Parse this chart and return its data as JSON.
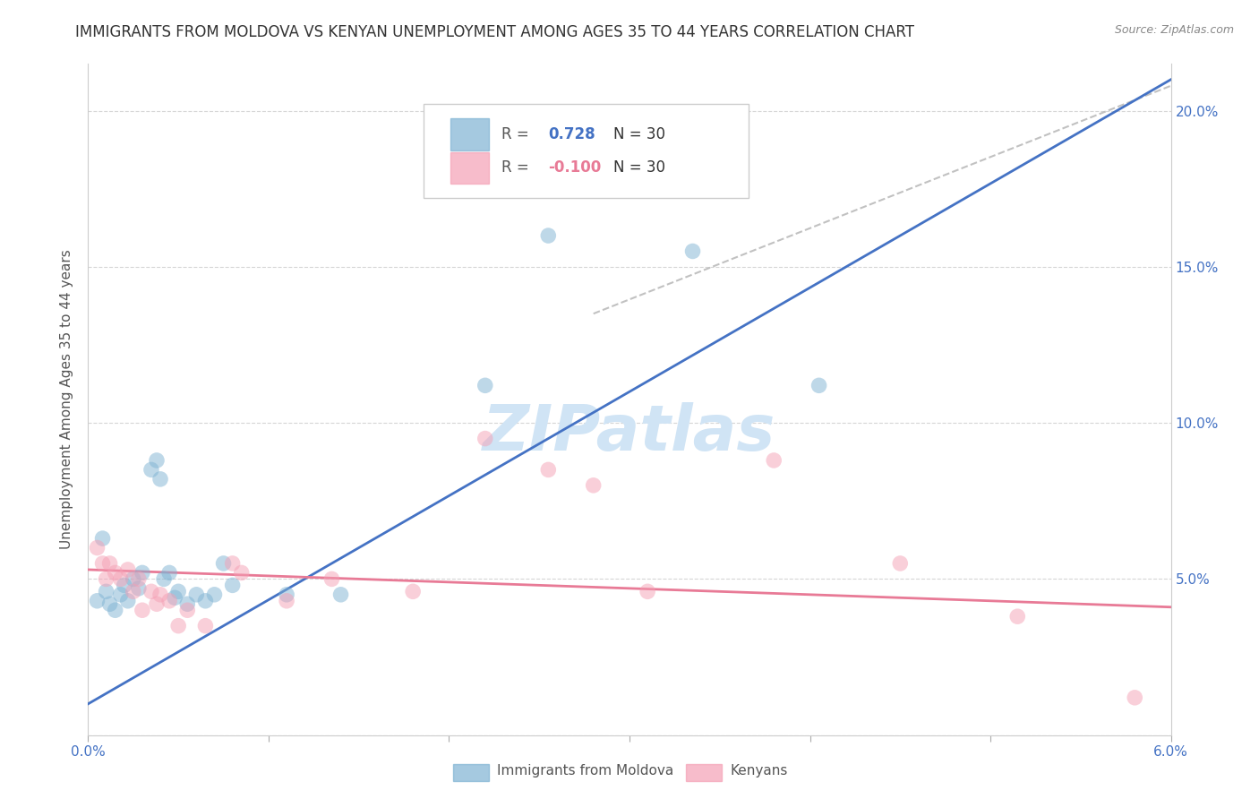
{
  "title": "IMMIGRANTS FROM MOLDOVA VS KENYAN UNEMPLOYMENT AMONG AGES 35 TO 44 YEARS CORRELATION CHART",
  "source": "Source: ZipAtlas.com",
  "ylabel": "Unemployment Among Ages 35 to 44 years",
  "xlim": [
    0.0,
    6.0
  ],
  "ylim": [
    0.0,
    21.5
  ],
  "yticks": [
    0.0,
    5.0,
    10.0,
    15.0,
    20.0
  ],
  "blue_scatter": [
    [
      0.05,
      4.3
    ],
    [
      0.08,
      6.3
    ],
    [
      0.1,
      4.6
    ],
    [
      0.12,
      4.2
    ],
    [
      0.15,
      4.0
    ],
    [
      0.18,
      4.5
    ],
    [
      0.2,
      4.8
    ],
    [
      0.22,
      4.3
    ],
    [
      0.25,
      5.0
    ],
    [
      0.28,
      4.7
    ],
    [
      0.3,
      5.2
    ],
    [
      0.35,
      8.5
    ],
    [
      0.38,
      8.8
    ],
    [
      0.4,
      8.2
    ],
    [
      0.42,
      5.0
    ],
    [
      0.45,
      5.2
    ],
    [
      0.48,
      4.4
    ],
    [
      0.5,
      4.6
    ],
    [
      0.55,
      4.2
    ],
    [
      0.6,
      4.5
    ],
    [
      0.65,
      4.3
    ],
    [
      0.7,
      4.5
    ],
    [
      0.75,
      5.5
    ],
    [
      0.8,
      4.8
    ],
    [
      1.1,
      4.5
    ],
    [
      1.4,
      4.5
    ],
    [
      2.2,
      11.2
    ],
    [
      2.55,
      16.0
    ],
    [
      3.35,
      15.5
    ],
    [
      4.05,
      11.2
    ]
  ],
  "pink_scatter": [
    [
      0.05,
      6.0
    ],
    [
      0.08,
      5.5
    ],
    [
      0.1,
      5.0
    ],
    [
      0.12,
      5.5
    ],
    [
      0.15,
      5.2
    ],
    [
      0.18,
      5.0
    ],
    [
      0.22,
      5.3
    ],
    [
      0.25,
      4.6
    ],
    [
      0.28,
      5.0
    ],
    [
      0.3,
      4.0
    ],
    [
      0.35,
      4.6
    ],
    [
      0.38,
      4.2
    ],
    [
      0.4,
      4.5
    ],
    [
      0.45,
      4.3
    ],
    [
      0.5,
      3.5
    ],
    [
      0.55,
      4.0
    ],
    [
      0.65,
      3.5
    ],
    [
      0.8,
      5.5
    ],
    [
      0.85,
      5.2
    ],
    [
      1.1,
      4.3
    ],
    [
      1.35,
      5.0
    ],
    [
      1.8,
      4.6
    ],
    [
      2.2,
      9.5
    ],
    [
      2.55,
      8.5
    ],
    [
      2.8,
      8.0
    ],
    [
      3.1,
      4.6
    ],
    [
      3.8,
      8.8
    ],
    [
      4.5,
      5.5
    ],
    [
      5.15,
      3.8
    ],
    [
      5.8,
      1.2
    ]
  ],
  "blue_line_x": [
    0.0,
    6.0
  ],
  "blue_line_y": [
    1.0,
    21.0
  ],
  "pink_line_x": [
    0.0,
    6.0
  ],
  "pink_line_y": [
    5.3,
    4.1
  ],
  "diag_line_x": [
    2.8,
    6.0
  ],
  "diag_line_y": [
    13.5,
    20.8
  ],
  "scatter_size": 160,
  "scatter_alpha": 0.5,
  "blue_color": "#7fb3d3",
  "pink_color": "#f5a0b5",
  "blue_line_color": "#4472c4",
  "pink_line_color": "#e87a96",
  "diag_color": "#bbbbbb",
  "grid_color": "#cccccc",
  "title_fontsize": 12,
  "ylabel_fontsize": 11,
  "tick_fontsize": 11,
  "legend_fontsize": 12,
  "watermark_text": "ZIPatlas",
  "watermark_color": "#d0e4f5",
  "R_blue": "0.728",
  "R_pink": "-0.100",
  "N_blue": "30",
  "N_pink": "30"
}
